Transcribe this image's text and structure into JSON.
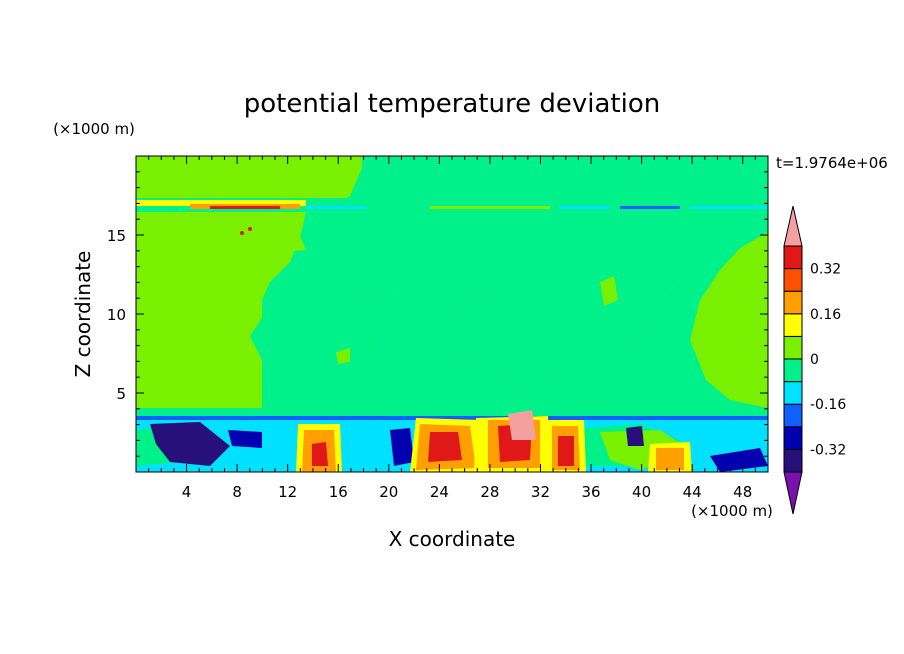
{
  "chart_data": {
    "type": "heatmap",
    "title": "potential temperature deviation",
    "xlabel": "X coordinate",
    "ylabel": "Z coordinate",
    "x_unit": "(×1000 m)",
    "y_unit": "(×1000 m)",
    "time_label": "t=1.9764e+06",
    "xlim": [
      0,
      50
    ],
    "ylim": [
      0,
      20
    ],
    "x_ticks": [
      "4",
      "8",
      "12",
      "16",
      "20",
      "24",
      "28",
      "32",
      "36",
      "40",
      "44",
      "48"
    ],
    "y_ticks": [
      "5",
      "10",
      "15"
    ],
    "colorbar": {
      "levels": [
        -0.4,
        -0.32,
        -0.24,
        -0.16,
        -0.08,
        0,
        0.08,
        0.16,
        0.24,
        0.32,
        0.4
      ],
      "tick_labels": [
        "-0.32",
        "-0.16",
        "0",
        "0.16",
        "0.32"
      ],
      "colors": [
        "#7a10b0",
        "#28107a",
        "#0000b0",
        "#1060ff",
        "#00e0ff",
        "#00f08a",
        "#78f000",
        "#ffff00",
        "#ffa000",
        "#ff5000",
        "#e01818",
        "#f4a0a0"
      ]
    },
    "regions": [
      {
        "band": "upper layer z 0-16.5",
        "value": 0.04,
        "label": "0 to 0.08"
      },
      {
        "band": "mid troposphere center",
        "value": -0.04,
        "label": "-0.08 to 0"
      },
      {
        "band": "tropopause z≈16.5-17",
        "value": 0.2,
        "label": "±0.24 thin band"
      },
      {
        "band": "boundary layer z 0-3.5",
        "value": "mixed",
        "label": "-0.4 to 0.4"
      }
    ]
  }
}
